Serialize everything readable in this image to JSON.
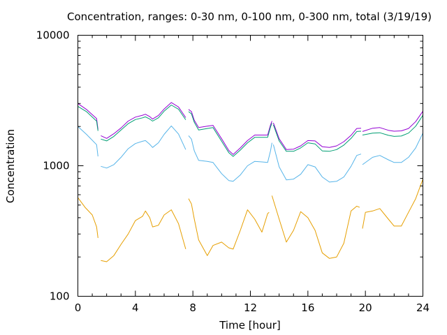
{
  "chart_data": {
    "type": "line",
    "title": "Concentration, ranges: 0-30 nm, 0-100 nm, 0-300 nm, total (3/19/19)",
    "xlabel": "Time [hour]",
    "ylabel": "Concentration",
    "xlim": [
      0,
      24
    ],
    "ylim": [
      100,
      10000
    ],
    "yscale": "log",
    "xticks": [
      "0",
      "4",
      "8",
      "12",
      "16",
      "20",
      "24"
    ],
    "yticks": [
      "100",
      "1000",
      "10000"
    ],
    "grid": false,
    "legend": "none",
    "series": [
      {
        "color": "#9400d3",
        "points": [
          [
            0,
            3000
          ],
          [
            0.6,
            2700
          ],
          [
            1.3,
            2300
          ],
          [
            1.4,
            1900
          ],
          [
            null,
            null
          ],
          [
            1.6,
            1700
          ],
          [
            2.0,
            1620
          ],
          [
            2.5,
            1760
          ],
          [
            3.0,
            1950
          ],
          [
            3.5,
            2200
          ],
          [
            4.0,
            2360
          ],
          [
            4.5,
            2440
          ],
          [
            4.7,
            2480
          ],
          [
            5.0,
            2380
          ],
          [
            5.2,
            2280
          ],
          [
            5.6,
            2430
          ],
          [
            6.0,
            2720
          ],
          [
            6.5,
            3050
          ],
          [
            7.0,
            2820
          ],
          [
            7.5,
            2340
          ],
          [
            null,
            null
          ],
          [
            7.7,
            2700
          ],
          [
            7.9,
            2600
          ],
          [
            8.1,
            2230
          ],
          [
            8.4,
            1960
          ],
          [
            9.0,
            2010
          ],
          [
            9.4,
            2040
          ],
          [
            10.0,
            1610
          ],
          [
            10.5,
            1310
          ],
          [
            10.8,
            1220
          ],
          [
            11.3,
            1370
          ],
          [
            11.8,
            1560
          ],
          [
            12.3,
            1720
          ],
          [
            12.8,
            1720
          ],
          [
            13.2,
            1720
          ],
          [
            13.4,
            2050
          ],
          [
            13.5,
            2200
          ],
          [
            null,
            null
          ],
          [
            13.6,
            2130
          ],
          [
            14.0,
            1610
          ],
          [
            14.5,
            1330
          ],
          [
            15.0,
            1340
          ],
          [
            15.5,
            1420
          ],
          [
            16.0,
            1560
          ],
          [
            16.5,
            1550
          ],
          [
            17.0,
            1400
          ],
          [
            17.5,
            1380
          ],
          [
            18.0,
            1420
          ],
          [
            18.5,
            1530
          ],
          [
            19.0,
            1710
          ],
          [
            19.4,
            1930
          ],
          [
            19.7,
            1940
          ],
          [
            null,
            null
          ],
          [
            19.8,
            1830
          ],
          [
            20.5,
            1940
          ],
          [
            21.0,
            1960
          ],
          [
            21.6,
            1870
          ],
          [
            22.0,
            1840
          ],
          [
            22.5,
            1850
          ],
          [
            23.0,
            1930
          ],
          [
            23.5,
            2180
          ],
          [
            24.0,
            2620
          ]
        ]
      },
      {
        "color": "#009e73",
        "points": [
          [
            0,
            2850
          ],
          [
            0.6,
            2600
          ],
          [
            1.3,
            2200
          ],
          [
            1.4,
            1850
          ],
          [
            null,
            null
          ],
          [
            1.6,
            1600
          ],
          [
            2.0,
            1550
          ],
          [
            2.5,
            1680
          ],
          [
            3.0,
            1880
          ],
          [
            3.5,
            2100
          ],
          [
            4.0,
            2260
          ],
          [
            4.5,
            2330
          ],
          [
            4.7,
            2370
          ],
          [
            5.0,
            2280
          ],
          [
            5.2,
            2200
          ],
          [
            5.6,
            2330
          ],
          [
            6.0,
            2620
          ],
          [
            6.5,
            2920
          ],
          [
            7.0,
            2710
          ],
          [
            7.5,
            2250
          ],
          [
            null,
            null
          ],
          [
            7.7,
            2600
          ],
          [
            7.9,
            2500
          ],
          [
            8.1,
            2150
          ],
          [
            8.4,
            1880
          ],
          [
            9.0,
            1930
          ],
          [
            9.4,
            1960
          ],
          [
            10.0,
            1540
          ],
          [
            10.5,
            1260
          ],
          [
            10.8,
            1180
          ],
          [
            11.3,
            1320
          ],
          [
            11.8,
            1500
          ],
          [
            12.3,
            1650
          ],
          [
            12.8,
            1650
          ],
          [
            13.2,
            1650
          ],
          [
            13.4,
            1980
          ],
          [
            13.5,
            2120
          ],
          [
            null,
            null
          ],
          [
            13.6,
            2060
          ],
          [
            14.0,
            1550
          ],
          [
            14.5,
            1290
          ],
          [
            15.0,
            1290
          ],
          [
            15.5,
            1370
          ],
          [
            16.0,
            1500
          ],
          [
            16.5,
            1470
          ],
          [
            17.0,
            1300
          ],
          [
            17.5,
            1290
          ],
          [
            18.0,
            1330
          ],
          [
            18.5,
            1440
          ],
          [
            19.0,
            1620
          ],
          [
            19.4,
            1830
          ],
          [
            19.7,
            1840
          ],
          [
            null,
            null
          ],
          [
            19.8,
            1720
          ],
          [
            20.5,
            1780
          ],
          [
            21.0,
            1790
          ],
          [
            21.6,
            1710
          ],
          [
            22.0,
            1680
          ],
          [
            22.5,
            1690
          ],
          [
            23.0,
            1780
          ],
          [
            23.5,
            2010
          ],
          [
            24.0,
            2440
          ]
        ]
      },
      {
        "color": "#56b4e9",
        "points": [
          [
            0,
            2000
          ],
          [
            0.6,
            1740
          ],
          [
            1.3,
            1450
          ],
          [
            1.4,
            1180
          ],
          [
            null,
            null
          ],
          [
            1.6,
            990
          ],
          [
            2.0,
            960
          ],
          [
            2.5,
            1020
          ],
          [
            3.0,
            1160
          ],
          [
            3.5,
            1350
          ],
          [
            4.0,
            1480
          ],
          [
            4.5,
            1540
          ],
          [
            4.7,
            1560
          ],
          [
            5.0,
            1460
          ],
          [
            5.2,
            1380
          ],
          [
            5.6,
            1500
          ],
          [
            6.0,
            1740
          ],
          [
            6.5,
            2020
          ],
          [
            7.0,
            1750
          ],
          [
            7.5,
            1330
          ],
          [
            null,
            null
          ],
          [
            7.7,
            1700
          ],
          [
            7.9,
            1600
          ],
          [
            8.1,
            1300
          ],
          [
            8.4,
            1100
          ],
          [
            9.0,
            1080
          ],
          [
            9.4,
            1060
          ],
          [
            10.0,
            870
          ],
          [
            10.5,
            770
          ],
          [
            10.8,
            760
          ],
          [
            11.3,
            850
          ],
          [
            11.8,
            1000
          ],
          [
            12.3,
            1080
          ],
          [
            12.8,
            1070
          ],
          [
            13.2,
            1060
          ],
          [
            13.4,
            1300
          ],
          [
            13.5,
            1500
          ],
          [
            null,
            null
          ],
          [
            13.6,
            1450
          ],
          [
            14.0,
            980
          ],
          [
            14.5,
            780
          ],
          [
            15.0,
            790
          ],
          [
            15.5,
            860
          ],
          [
            16.0,
            1020
          ],
          [
            16.5,
            980
          ],
          [
            17.0,
            820
          ],
          [
            17.5,
            750
          ],
          [
            18.0,
            760
          ],
          [
            18.5,
            820
          ],
          [
            19.0,
            990
          ],
          [
            19.4,
            1200
          ],
          [
            19.7,
            1230
          ],
          [
            null,
            null
          ],
          [
            19.8,
            1020
          ],
          [
            20.5,
            1160
          ],
          [
            21.0,
            1200
          ],
          [
            21.6,
            1110
          ],
          [
            22.0,
            1060
          ],
          [
            22.5,
            1060
          ],
          [
            23.0,
            1160
          ],
          [
            23.5,
            1370
          ],
          [
            24.0,
            1780
          ]
        ]
      },
      {
        "color": "#e69f00",
        "points": [
          [
            0,
            570
          ],
          [
            0.5,
            480
          ],
          [
            1.0,
            420
          ],
          [
            1.3,
            340
          ],
          [
            1.4,
            280
          ],
          [
            null,
            null
          ],
          [
            1.6,
            188
          ],
          [
            2.0,
            184
          ],
          [
            2.5,
            205
          ],
          [
            3.0,
            250
          ],
          [
            3.5,
            300
          ],
          [
            4.0,
            380
          ],
          [
            4.5,
            410
          ],
          [
            4.7,
            450
          ],
          [
            5.0,
            400
          ],
          [
            5.2,
            340
          ],
          [
            5.6,
            350
          ],
          [
            6.0,
            420
          ],
          [
            6.5,
            460
          ],
          [
            7.0,
            360
          ],
          [
            7.5,
            230
          ],
          [
            null,
            null
          ],
          [
            7.7,
            560
          ],
          [
            7.9,
            510
          ],
          [
            8.1,
            390
          ],
          [
            8.4,
            270
          ],
          [
            9.0,
            205
          ],
          [
            9.4,
            245
          ],
          [
            10.0,
            260
          ],
          [
            10.5,
            235
          ],
          [
            10.8,
            230
          ],
          [
            11.3,
            320
          ],
          [
            11.8,
            460
          ],
          [
            12.3,
            390
          ],
          [
            12.8,
            310
          ],
          [
            13.2,
            430
          ],
          [
            13.3,
            440
          ],
          [
            null,
            null
          ],
          [
            13.5,
            590
          ],
          [
            14.0,
            390
          ],
          [
            14.5,
            260
          ],
          [
            15.0,
            320
          ],
          [
            15.5,
            445
          ],
          [
            16.0,
            400
          ],
          [
            16.5,
            320
          ],
          [
            17.0,
            215
          ],
          [
            17.5,
            195
          ],
          [
            18.0,
            200
          ],
          [
            18.5,
            255
          ],
          [
            19.0,
            450
          ],
          [
            19.4,
            490
          ],
          [
            19.6,
            480
          ],
          [
            null,
            null
          ],
          [
            19.8,
            330
          ],
          [
            20.0,
            440
          ],
          [
            20.5,
            450
          ],
          [
            21.0,
            470
          ],
          [
            21.6,
            390
          ],
          [
            22.0,
            345
          ],
          [
            22.5,
            345
          ],
          [
            23.0,
            440
          ],
          [
            23.5,
            560
          ],
          [
            24.0,
            790
          ]
        ]
      }
    ]
  }
}
